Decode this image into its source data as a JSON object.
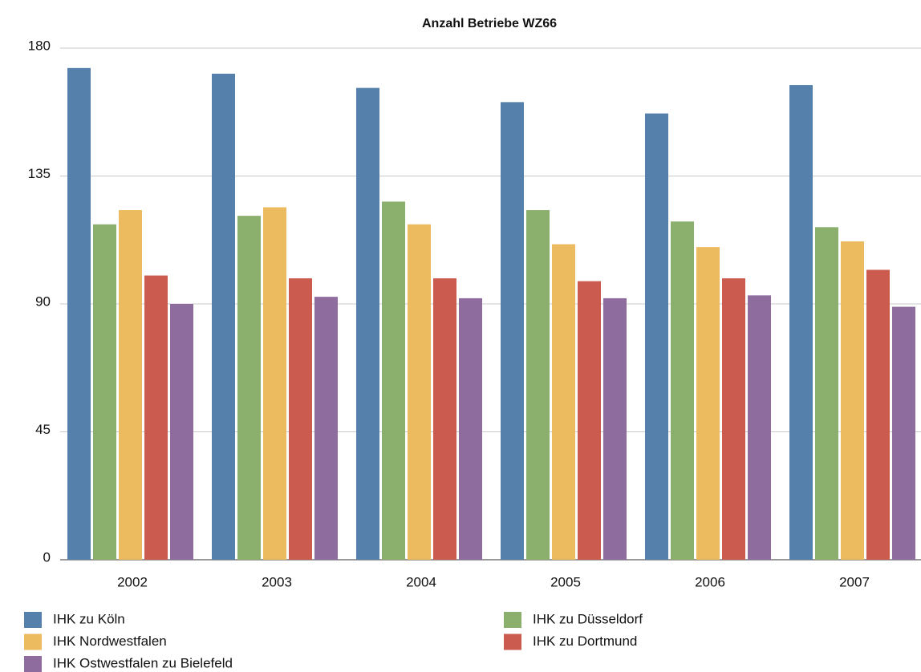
{
  "chart_data": {
    "type": "bar",
    "title": "Anzahl Betriebe WZ66",
    "categories": [
      "2002",
      "2003",
      "2004",
      "2005",
      "2006",
      "2007"
    ],
    "series": [
      {
        "name": "IHK zu Köln",
        "color": "#5580ac",
        "values": [
          173,
          171,
          166,
          161,
          157,
          167
        ]
      },
      {
        "name": "IHK zu Düsseldorf",
        "color": "#8bb06e",
        "values": [
          118,
          121,
          126,
          123,
          119,
          117
        ]
      },
      {
        "name": "IHK Nordwestfalen",
        "color": "#edbb5f",
        "values": [
          123,
          124,
          118,
          111,
          110,
          112
        ]
      },
      {
        "name": "IHK zu Dortmund",
        "color": "#cb5b4e",
        "values": [
          100,
          99,
          99,
          98,
          99,
          102
        ]
      },
      {
        "name": "IHK Ostwestfalen zu Bielefeld",
        "color": "#8f6c9e",
        "values": [
          90,
          92.5,
          92,
          92,
          93,
          89
        ]
      }
    ],
    "ylim": [
      0,
      180
    ],
    "yticks": [
      0,
      45,
      90,
      135,
      180
    ],
    "grid": true
  }
}
